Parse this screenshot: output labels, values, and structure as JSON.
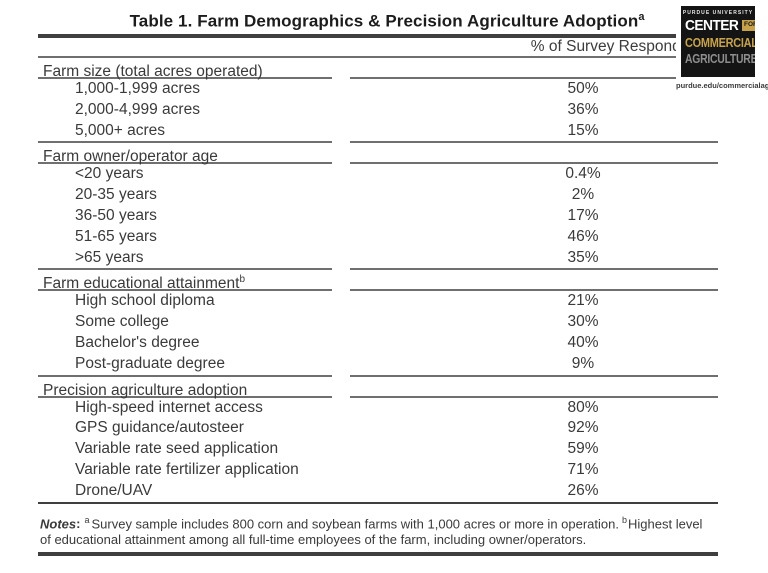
{
  "title": {
    "text": "Table 1. Farm Demographics & Precision Agriculture Adoption",
    "superscript": "a"
  },
  "table": {
    "value_header": "% of Survey Respondents",
    "sections": [
      {
        "header": "Farm size (total acres operated)",
        "superscript": "",
        "rows": [
          {
            "label": "1,000-1,999 acres",
            "value": "50%"
          },
          {
            "label": "2,000-4,999 acres",
            "value": "36%"
          },
          {
            "label": "5,000+ acres",
            "value": "15%"
          }
        ]
      },
      {
        "header": "Farm owner/operator age",
        "superscript": "",
        "rows": [
          {
            "label": "<20 years",
            "value": "0.4%"
          },
          {
            "label": "20-35 years",
            "value": "2%"
          },
          {
            "label": "36-50 years",
            "value": "17%"
          },
          {
            "label": "51-65 years",
            "value": "46%"
          },
          {
            "label": ">65 years",
            "value": "35%"
          }
        ]
      },
      {
        "header": "Farm educational attainment",
        "superscript": "b",
        "rows": [
          {
            "label": "High school diploma",
            "value": "21%"
          },
          {
            "label": "Some college",
            "value": "30%"
          },
          {
            "label": "Bachelor's degree",
            "value": "40%"
          },
          {
            "label": "Post-graduate degree",
            "value": "9%"
          }
        ]
      },
      {
        "header": "Precision agriculture adoption",
        "superscript": "",
        "rows": [
          {
            "label": "High-speed internet access",
            "value": "80%"
          },
          {
            "label": "GPS guidance/autosteer",
            "value": "92%"
          },
          {
            "label": "Variable rate seed application",
            "value": "59%"
          },
          {
            "label": "Variable rate fertilizer application",
            "value": "71%"
          },
          {
            "label": "Drone/UAV",
            "value": "26%"
          }
        ]
      }
    ]
  },
  "notes": {
    "label": "Notes",
    "colon": ":",
    "note_a_sup": "a",
    "note_a": "Survey sample includes 800 corn and soybean farms with 1,000 acres or more in operation.",
    "note_b_sup": "b",
    "note_b": "Highest level of educational attainment among all full-time employees of the farm, including owner/operators."
  },
  "logo": {
    "university": "PURDUE UNIVERSITY",
    "word1": "CENTER",
    "word1_suffix": "FOR",
    "word2": "COMMERCIAL",
    "word3": "AGRICULTURE",
    "url": "purdue.edu/commercialag",
    "colors": {
      "background": "#141414",
      "gold": "#c7a24a",
      "white": "#ffffff",
      "gray": "#8f8f8f"
    }
  }
}
